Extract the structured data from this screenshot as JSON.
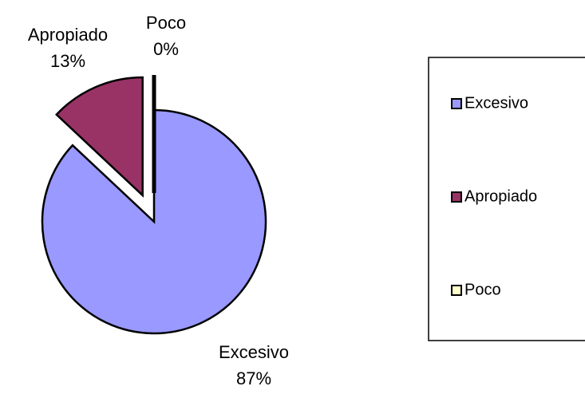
{
  "chart_data": {
    "type": "pie",
    "categories": [
      "Excesivo",
      "Apropiado",
      "Poco"
    ],
    "values": [
      87,
      13,
      0
    ],
    "value_labels": [
      "87%",
      "13%",
      "0%"
    ],
    "colors": [
      "#9999ff",
      "#993366",
      "#ffffcc"
    ],
    "legend": "right"
  }
}
